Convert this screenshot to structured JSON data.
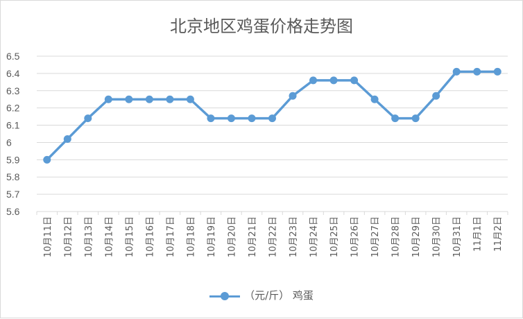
{
  "chart_data": {
    "type": "line",
    "title": "北京地区鸡蛋价格走势图",
    "categories": [
      "10月11日",
      "10月12日",
      "10月13日",
      "10月14日",
      "10月15日",
      "10月16日",
      "10月17日",
      "10月18日",
      "10月19日",
      "10月20日",
      "10月21日",
      "10月22日",
      "10月23日",
      "10月24日",
      "10月25日",
      "10月26日",
      "10月27日",
      "10月28日",
      "10月29日",
      "10月30日",
      "10月31日",
      "11月1日",
      "11月2日"
    ],
    "series": [
      {
        "name": "（元/斤） 鸡蛋",
        "values": [
          5.9,
          6.02,
          6.14,
          6.25,
          6.25,
          6.25,
          6.25,
          6.25,
          6.14,
          6.14,
          6.14,
          6.14,
          6.27,
          6.36,
          6.36,
          6.36,
          6.25,
          6.14,
          6.14,
          6.27,
          6.41,
          6.41,
          6.41
        ]
      }
    ],
    "ylim": [
      5.6,
      6.5
    ],
    "yticks": [
      "6.5",
      "6.4",
      "6.3",
      "6.2",
      "6.1",
      "6",
      "5.9",
      "5.8",
      "5.7",
      "5.6"
    ],
    "grid": true,
    "legend_position": "bottom",
    "color": "#5b9bd5"
  }
}
